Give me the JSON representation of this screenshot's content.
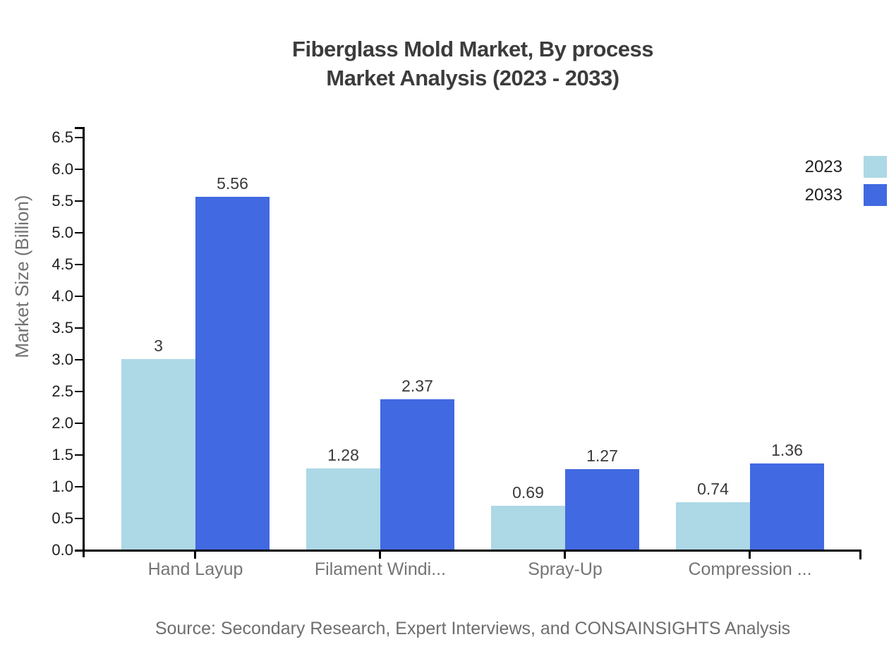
{
  "title": {
    "line1": "Fiberglass Mold Market, By process",
    "line2": "Market Analysis (2023 - 2033)"
  },
  "source": "Source: Secondary Research, Expert Interviews, and CONSAINSIGHTS Analysis",
  "legend": {
    "items": [
      {
        "label": "2023",
        "color": "#add8e6"
      },
      {
        "label": "2033",
        "color": "#4169e1"
      }
    ]
  },
  "colors": {
    "series_2023": "#add8e6",
    "series_2033": "#4169e1",
    "axis": "#000000",
    "title_text": "#3c3c3c",
    "muted_text": "#717171",
    "tick_text": "#1f1f1f",
    "value_text": "#3a3a3a"
  },
  "chart_data": {
    "type": "bar",
    "title": "Fiberglass Mold Market, By process Market Analysis (2023 - 2033)",
    "categories": [
      "Hand Layup",
      "Filament Windi...",
      "Spray-Up",
      "Compression ..."
    ],
    "series": [
      {
        "name": "2023",
        "color": "#add8e6",
        "values": [
          3,
          1.28,
          0.69,
          0.74
        ],
        "labels": [
          "3",
          "1.28",
          "0.69",
          "0.74"
        ]
      },
      {
        "name": "2033",
        "color": "#4169e1",
        "values": [
          5.56,
          2.37,
          1.27,
          1.36
        ],
        "labels": [
          "5.56",
          "2.37",
          "1.27",
          "1.36"
        ]
      }
    ],
    "xlabel": "",
    "ylabel": "Market Size (Billion)",
    "ylim": [
      0,
      6.5
    ],
    "ytick_step": 0.5,
    "yticks": [
      "0.0",
      "0.5",
      "1.0",
      "1.5",
      "2.0",
      "2.5",
      "3.0",
      "3.5",
      "4.0",
      "4.5",
      "5.0",
      "5.5",
      "6.0",
      "6.5"
    ],
    "grid": false,
    "legend_position": "top-right"
  }
}
